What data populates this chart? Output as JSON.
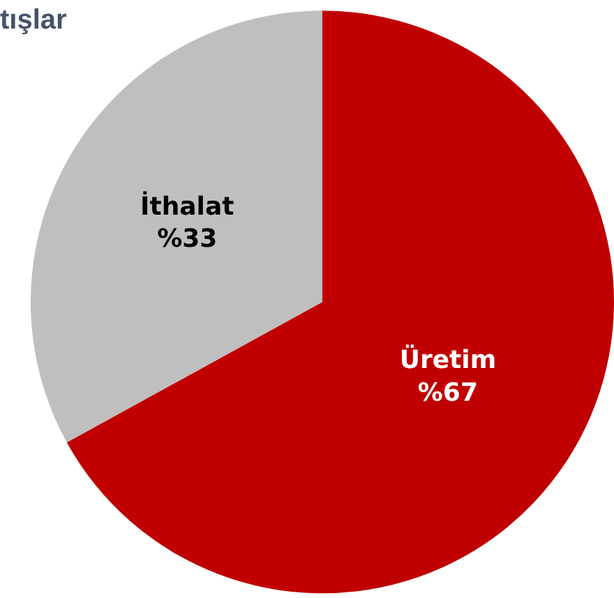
{
  "chart_data": {
    "type": "pie",
    "title": "tışlar",
    "categories": [
      "Üretim",
      "İthalat"
    ],
    "values": [
      67,
      33
    ],
    "value_labels": [
      "%67",
      "%33"
    ],
    "colors": [
      "#c00000",
      "#bfbfbf"
    ],
    "legend": false
  }
}
